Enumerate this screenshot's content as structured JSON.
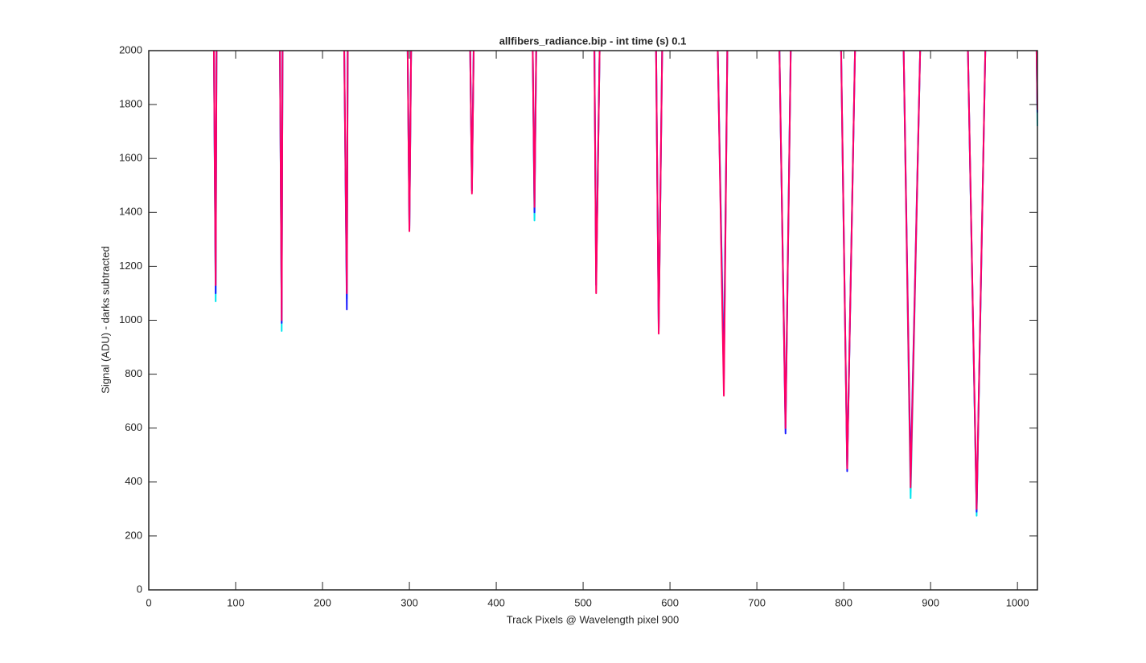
{
  "chart_data": {
    "type": "line",
    "title": "allfibers_radiance.bip - int time (s) 0.1",
    "x_label": "Track Pixels @ Wavelength pixel 900",
    "y_label": "Signal (ADU) - darks subtracted",
    "x": [
      75,
      77,
      78,
      110,
      151,
      153,
      154,
      190,
      225,
      228,
      229,
      265,
      298,
      300,
      302,
      335,
      370,
      372,
      374,
      410,
      442,
      444,
      446,
      480,
      513,
      515,
      519,
      550,
      584,
      587,
      591,
      620,
      655,
      662,
      666,
      695,
      726,
      733,
      739,
      770,
      797,
      804,
      813,
      840,
      869,
      877,
      888,
      915,
      943,
      953,
      963,
      990,
      1022,
      1023
    ],
    "series": [
      {
        "color": "#00e5ee",
        "values": [
          2000,
          1070,
          2000,
          null,
          2000,
          960,
          2000,
          null,
          2000,
          1080,
          2000,
          null,
          2000,
          1350,
          2000,
          null,
          2000,
          1490,
          2000,
          null,
          2000,
          1370,
          2000,
          null,
          2000,
          1150,
          2000,
          null,
          2000,
          960,
          2000,
          null,
          2000,
          820,
          2000,
          null,
          2000,
          620,
          2000,
          null,
          2000,
          460,
          2000,
          null,
          2000,
          340,
          2000,
          null,
          2000,
          275,
          2000,
          null,
          2000,
          1720
        ]
      },
      {
        "color": "#1a1aff",
        "values": [
          2000,
          1100,
          2000,
          null,
          2000,
          990,
          2000,
          null,
          2000,
          1040,
          2000,
          null,
          2000,
          1340,
          2000,
          null,
          2000,
          1480,
          2000,
          null,
          2000,
          1400,
          2000,
          null,
          2000,
          1130,
          2000,
          null,
          2000,
          970,
          2000,
          null,
          2000,
          780,
          2000,
          null,
          2000,
          580,
          2000,
          null,
          2000,
          440,
          2000,
          null,
          2000,
          420,
          2000,
          null,
          2000,
          290,
          2000,
          null,
          2000,
          1770
        ]
      },
      {
        "color": "#ff0066",
        "values": [
          2000,
          1130,
          2000,
          null,
          2000,
          1000,
          2000,
          null,
          2000,
          1100,
          2000,
          null,
          2000,
          1330,
          2000,
          null,
          2000,
          1470,
          2000,
          null,
          2000,
          1420,
          2000,
          null,
          2000,
          1100,
          2000,
          null,
          2000,
          950,
          2000,
          null,
          2000,
          720,
          2000,
          null,
          2000,
          600,
          2000,
          null,
          2000,
          450,
          2000,
          null,
          2000,
          380,
          2000,
          null,
          2000,
          300,
          2000,
          null,
          2000,
          1780
        ]
      }
    ],
    "xlim": [
      0,
      1023
    ],
    "xticks": [
      0,
      100,
      200,
      300,
      400,
      500,
      600,
      700,
      800,
      900,
      1000
    ],
    "ylim": [
      0,
      2000
    ],
    "yticks": [
      0,
      200,
      400,
      600,
      800,
      1000,
      1200,
      1400,
      1600,
      1800,
      2000
    ]
  }
}
